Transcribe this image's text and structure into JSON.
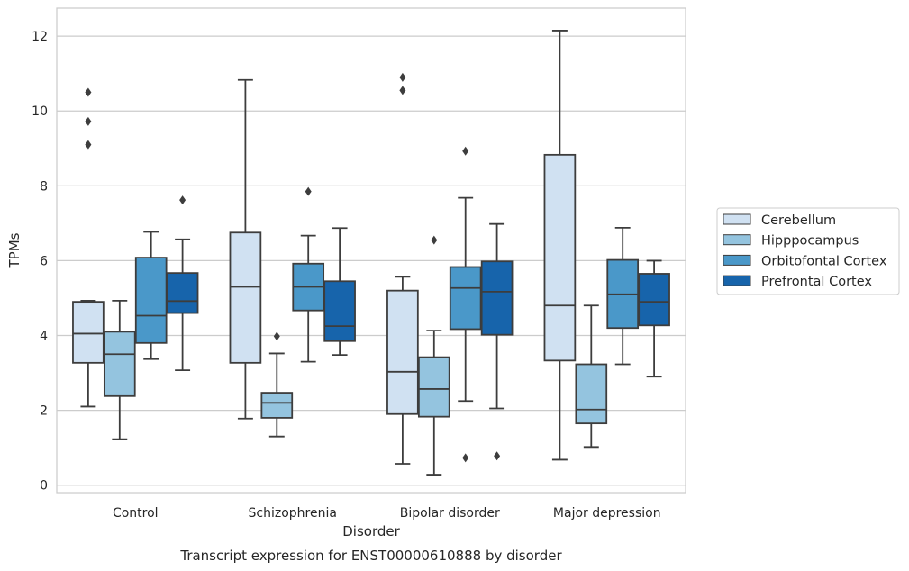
{
  "caption": "Transcript expression for ENST00000610888 by disorder",
  "chart_data": {
    "type": "box",
    "xlabel": "Disorder",
    "ylabel": "TPMs",
    "ylim": [
      -0.2,
      12.75
    ],
    "yticks": [
      0,
      2,
      4,
      6,
      8,
      10,
      12
    ],
    "grid": "horizontal",
    "legend_position": "right",
    "categories": [
      "Control",
      "Schizophrenia",
      "Bipolar disorder",
      "Major depression"
    ],
    "series": [
      {
        "name": "Cerebellum",
        "color": "#d0e1f2",
        "boxes": [
          {
            "whisker_low": 2.1,
            "q1": 3.27,
            "median": 4.05,
            "q3": 4.9,
            "whisker_high": 4.93,
            "outliers": [
              9.1,
              9.72,
              10.5
            ]
          },
          {
            "whisker_low": 1.78,
            "q1": 3.27,
            "median": 5.3,
            "q3": 6.75,
            "whisker_high": 10.83,
            "outliers": []
          },
          {
            "whisker_low": 0.57,
            "q1": 1.9,
            "median": 3.03,
            "q3": 5.2,
            "whisker_high": 5.57,
            "outliers": [
              10.55,
              10.9
            ]
          },
          {
            "whisker_low": 0.68,
            "q1": 3.33,
            "median": 4.8,
            "q3": 8.83,
            "whisker_high": 12.15,
            "outliers": []
          }
        ]
      },
      {
        "name": "Hipppocampus",
        "color": "#94c4df",
        "boxes": [
          {
            "whisker_low": 1.23,
            "q1": 2.38,
            "median": 3.5,
            "q3": 4.1,
            "whisker_high": 4.93,
            "outliers": []
          },
          {
            "whisker_low": 1.3,
            "q1": 1.8,
            "median": 2.2,
            "q3": 2.47,
            "whisker_high": 3.52,
            "outliers": [
              3.98
            ]
          },
          {
            "whisker_low": 0.28,
            "q1": 1.83,
            "median": 2.57,
            "q3": 3.42,
            "whisker_high": 4.13,
            "outliers": [
              6.55
            ]
          },
          {
            "whisker_low": 1.02,
            "q1": 1.65,
            "median": 2.02,
            "q3": 3.23,
            "whisker_high": 4.8,
            "outliers": []
          }
        ]
      },
      {
        "name": "Orbitofontal Cortex",
        "color": "#4a98c9",
        "boxes": [
          {
            "whisker_low": 3.37,
            "q1": 3.8,
            "median": 4.53,
            "q3": 6.08,
            "whisker_high": 6.77,
            "outliers": []
          },
          {
            "whisker_low": 3.3,
            "q1": 4.67,
            "median": 5.3,
            "q3": 5.92,
            "whisker_high": 6.67,
            "outliers": [
              7.85
            ]
          },
          {
            "whisker_low": 2.25,
            "q1": 4.17,
            "median": 5.27,
            "q3": 5.83,
            "whisker_high": 7.68,
            "outliers": [
              0.73,
              8.93
            ]
          },
          {
            "whisker_low": 3.23,
            "q1": 4.2,
            "median": 5.1,
            "q3": 6.02,
            "whisker_high": 6.88,
            "outliers": []
          }
        ]
      },
      {
        "name": "Prefrontal Cortex",
        "color": "#1764ab",
        "boxes": [
          {
            "whisker_low": 3.07,
            "q1": 4.6,
            "median": 4.92,
            "q3": 5.67,
            "whisker_high": 6.57,
            "outliers": [
              7.62
            ]
          },
          {
            "whisker_low": 3.48,
            "q1": 3.85,
            "median": 4.25,
            "q3": 5.45,
            "whisker_high": 6.87,
            "outliers": []
          },
          {
            "whisker_low": 2.05,
            "q1": 4.02,
            "median": 5.17,
            "q3": 5.98,
            "whisker_high": 6.98,
            "outliers": [
              0.78
            ]
          },
          {
            "whisker_low": 2.9,
            "q1": 4.27,
            "median": 4.9,
            "q3": 5.65,
            "whisker_high": 6.0,
            "outliers": []
          }
        ]
      }
    ]
  }
}
